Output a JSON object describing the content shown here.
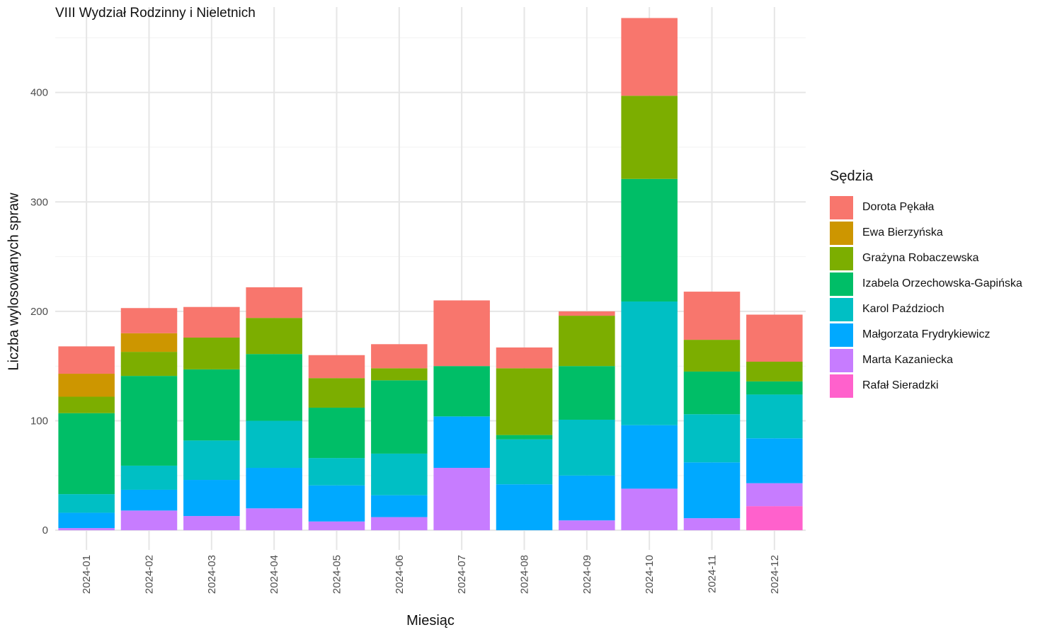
{
  "chart_data": {
    "type": "bar",
    "stacked": true,
    "title": "VIII Wydział Rodzinny i Nieletnich",
    "xlabel": "Miesiąc",
    "ylabel": "Liczba wylosowanych spraw",
    "legend_title": "Sędzia",
    "legend_position": "right",
    "grid": true,
    "ylim": [
      -18,
      478
    ],
    "yticks": [
      0,
      100,
      200,
      300,
      400
    ],
    "categories": [
      "2024-01",
      "2024-02",
      "2024-03",
      "2024-04",
      "2024-05",
      "2024-06",
      "2024-07",
      "2024-08",
      "2024-09",
      "2024-10",
      "2024-11",
      "2024-12"
    ],
    "series": [
      {
        "name": "Dorota Pękała",
        "color": "#F8766D",
        "values": [
          25,
          23,
          28,
          28,
          21,
          22,
          60,
          19,
          4,
          71,
          44,
          43
        ]
      },
      {
        "name": "Ewa Bierzyńska",
        "color": "#CD9600",
        "values": [
          21,
          17,
          0,
          0,
          0,
          0,
          0,
          0,
          0,
          0,
          0,
          0
        ]
      },
      {
        "name": "Grażyna Robaczewska",
        "color": "#7CAE00",
        "values": [
          15,
          22,
          29,
          33,
          27,
          11,
          0,
          61,
          46,
          76,
          29,
          18
        ]
      },
      {
        "name": "Izabela Orzechowska-Gapińska",
        "color": "#00BE67",
        "values": [
          74,
          82,
          65,
          61,
          46,
          67,
          46,
          4,
          49,
          112,
          39,
          12
        ]
      },
      {
        "name": "Karol Paździoch",
        "color": "#00BFC4",
        "values": [
          17,
          22,
          36,
          43,
          25,
          38,
          0,
          41,
          51,
          113,
          44,
          40
        ]
      },
      {
        "name": "Małgorzata Frydrykiewicz",
        "color": "#00A9FF",
        "values": [
          14,
          19,
          33,
          37,
          33,
          20,
          47,
          42,
          41,
          58,
          51,
          41
        ]
      },
      {
        "name": "Marta Kazaniecka",
        "color": "#C77CFF",
        "values": [
          2,
          18,
          13,
          20,
          8,
          12,
          57,
          0,
          9,
          38,
          11,
          21
        ]
      },
      {
        "name": "Rafał Sieradzki",
        "color": "#FF61CC",
        "values": [
          0,
          0,
          0,
          0,
          0,
          0,
          0,
          0,
          0,
          0,
          0,
          22
        ]
      }
    ]
  }
}
